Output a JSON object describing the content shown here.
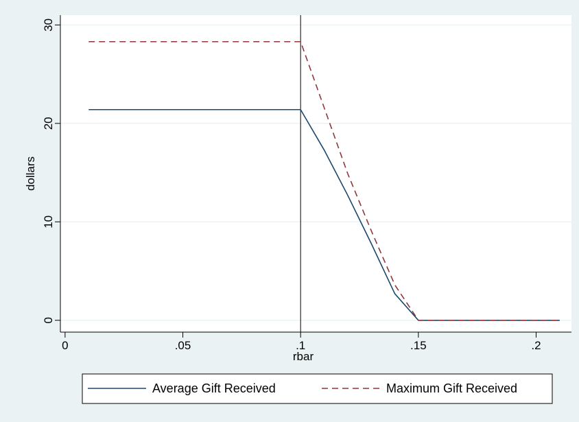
{
  "chart_data": {
    "type": "line",
    "xlabel": "rbar",
    "ylabel": "dollars",
    "xlim": [
      -0.002,
      0.215
    ],
    "ylim": [
      -1.2,
      31
    ],
    "x_ticks": [
      {
        "value": 0,
        "label": "0"
      },
      {
        "value": 0.05,
        "label": ".05"
      },
      {
        "value": 0.1,
        "label": ".1"
      },
      {
        "value": 0.15,
        "label": ".15"
      },
      {
        "value": 0.2,
        "label": ".2"
      }
    ],
    "y_ticks": [
      {
        "value": 0,
        "label": "0"
      },
      {
        "value": 10,
        "label": "10"
      },
      {
        "value": 20,
        "label": "20"
      },
      {
        "value": 30,
        "label": "30"
      }
    ],
    "grid": true,
    "reference_line_x": 0.1,
    "legend_position": "bottom",
    "series": [
      {
        "name": "Average Gift Received",
        "color": "#1a476f",
        "dash": "solid",
        "x": [
          0.01,
          0.1,
          0.11,
          0.12,
          0.13,
          0.14,
          0.15,
          0.16,
          0.17,
          0.18,
          0.19,
          0.2,
          0.21
        ],
        "y": [
          21.4,
          21.4,
          17.3,
          12.7,
          7.8,
          2.7,
          0,
          0,
          0,
          0,
          0,
          0,
          0
        ]
      },
      {
        "name": "Maximum Gift Received",
        "color": "#90353b",
        "dash": "dashed",
        "x": [
          0.01,
          0.1,
          0.11,
          0.12,
          0.13,
          0.14,
          0.15,
          0.16,
          0.17,
          0.18,
          0.19,
          0.2,
          0.21
        ],
        "y": [
          28.3,
          28.3,
          21.6,
          14.9,
          9.1,
          3.6,
          0,
          0,
          0,
          0,
          0,
          0,
          0
        ]
      }
    ]
  }
}
